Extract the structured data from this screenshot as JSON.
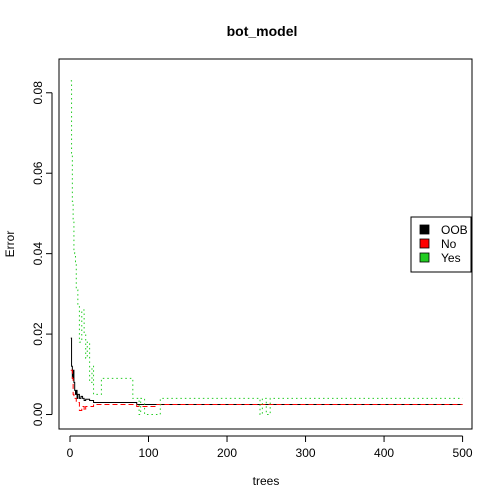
{
  "chart_data": {
    "type": "line",
    "title": "bot_model",
    "xlabel": "trees",
    "ylabel": "Error",
    "xlim": [
      0,
      500
    ],
    "ylim": [
      0,
      0.085
    ],
    "xticks": [
      0,
      100,
      200,
      300,
      400,
      500
    ],
    "xtick_labels": [
      "0",
      "100",
      "200",
      "300",
      "400",
      "500"
    ],
    "yticks": [
      0,
      0.02,
      0.04,
      0.06,
      0.08
    ],
    "ytick_labels": [
      "0.00",
      "0.02",
      "0.04",
      "0.06",
      "0.08"
    ],
    "grid": false,
    "legend_position": "right",
    "series": [
      {
        "name": "OOB",
        "color": "#000000",
        "style": "solid",
        "x": [
          1,
          2,
          3,
          4,
          5,
          6,
          7,
          8,
          9,
          10,
          12,
          14,
          16,
          18,
          20,
          25,
          30,
          40,
          50,
          60,
          70,
          80,
          85,
          90,
          100,
          110,
          120,
          150,
          200,
          240,
          250,
          260,
          300,
          400,
          500
        ],
        "y": [
          0.019,
          0.012,
          0.009,
          0.011,
          0.008,
          0.006,
          0.005,
          0.006,
          0.004,
          0.005,
          0.004,
          0.0045,
          0.004,
          0.0035,
          0.0038,
          0.0035,
          0.003,
          0.003,
          0.003,
          0.003,
          0.003,
          0.003,
          0.0025,
          0.0025,
          0.0025,
          0.0025,
          0.0025,
          0.0025,
          0.0025,
          0.0025,
          0.0025,
          0.0025,
          0.0025,
          0.0025,
          0.0025
        ]
      },
      {
        "name": "No",
        "color": "#ff0000",
        "style": "dashed",
        "x": [
          1,
          2,
          3,
          4,
          5,
          6,
          8,
          10,
          12,
          15,
          18,
          20,
          25,
          30,
          40,
          50,
          60,
          70,
          80,
          85,
          90,
          100,
          110,
          120,
          150,
          200,
          240,
          250,
          260,
          300,
          400,
          500
        ],
        "y": [
          0.011,
          0.011,
          0.009,
          0.005,
          0.004,
          0.004,
          0.003,
          0.003,
          0.001,
          0.002,
          0.001,
          0.002,
          0.002,
          0.0025,
          0.0025,
          0.0025,
          0.0025,
          0.0025,
          0.0025,
          0.002,
          0.002,
          0.002,
          0.0025,
          0.0025,
          0.0025,
          0.0025,
          0.0025,
          0.0025,
          0.0025,
          0.0025,
          0.0025,
          0.0025
        ]
      },
      {
        "name": "Yes",
        "color": "#22cc22",
        "style": "dotted",
        "x": [
          1,
          2,
          3,
          4,
          5,
          6,
          7,
          8,
          10,
          12,
          15,
          18,
          20,
          22,
          25,
          28,
          30,
          35,
          40,
          45,
          50,
          60,
          70,
          78,
          80,
          85,
          88,
          90,
          95,
          100,
          110,
          115,
          150,
          200,
          240,
          242,
          245,
          250,
          255,
          260,
          300,
          400,
          500
        ],
        "y": [
          0.083,
          0.065,
          0.053,
          0.048,
          0.041,
          0.04,
          0.038,
          0.031,
          0.027,
          0.018,
          0.026,
          0.02,
          0.014,
          0.018,
          0.008,
          0.012,
          0.005,
          0.005,
          0.009,
          0.009,
          0.009,
          0.009,
          0.009,
          0.009,
          0.004,
          0.004,
          0.0,
          0.004,
          0.0,
          0.0,
          0.0,
          0.004,
          0.004,
          0.004,
          0.004,
          0.0,
          0.004,
          0.0,
          0.004,
          0.004,
          0.004,
          0.004,
          0.004
        ]
      }
    ]
  }
}
